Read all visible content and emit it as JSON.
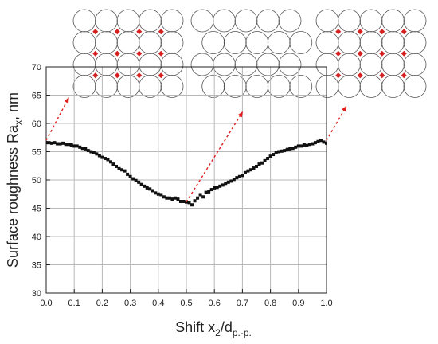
{
  "chart_data": {
    "type": "scatter",
    "xlabel": {
      "main": "Shift x",
      "sub1": "2",
      "sep": "/d",
      "sub2": "p.-p."
    },
    "ylabel": {
      "main": "Surface roughness Ra",
      "sub": "x",
      "unit": ", nm"
    },
    "xlim": [
      0.0,
      1.0
    ],
    "ylim": [
      30,
      70
    ],
    "x_ticks": [
      "0.0",
      "0.1",
      "0.2",
      "0.3",
      "0.4",
      "0.5",
      "0.6",
      "0.7",
      "0.8",
      "0.9",
      "1.0"
    ],
    "y_ticks": [
      "30",
      "35",
      "40",
      "45",
      "50",
      "55",
      "60",
      "65",
      "70"
    ],
    "grid": true,
    "marker": "square",
    "marker_color": "#111111",
    "series": [
      {
        "x": [
          0.0,
          0.01,
          0.02,
          0.03,
          0.04,
          0.05,
          0.06,
          0.07,
          0.08,
          0.09,
          0.1,
          0.11,
          0.12,
          0.13,
          0.14,
          0.15,
          0.16,
          0.17,
          0.18,
          0.19,
          0.2,
          0.21,
          0.22,
          0.23,
          0.24,
          0.25,
          0.26,
          0.27,
          0.28,
          0.29,
          0.3,
          0.31,
          0.32,
          0.33,
          0.34,
          0.35,
          0.36,
          0.37,
          0.38,
          0.39,
          0.4,
          0.41,
          0.42,
          0.43,
          0.44,
          0.45,
          0.46,
          0.47,
          0.48,
          0.49,
          0.5,
          0.51,
          0.52,
          0.53,
          0.54,
          0.55,
          0.56,
          0.57,
          0.58,
          0.59,
          0.6,
          0.61,
          0.62,
          0.63,
          0.64,
          0.65,
          0.66,
          0.67,
          0.68,
          0.69,
          0.7,
          0.71,
          0.72,
          0.73,
          0.74,
          0.75,
          0.76,
          0.77,
          0.78,
          0.79,
          0.8,
          0.81,
          0.82,
          0.83,
          0.84,
          0.85,
          0.86,
          0.87,
          0.88,
          0.89,
          0.9,
          0.91,
          0.92,
          0.93,
          0.94,
          0.95,
          0.96,
          0.97,
          0.98,
          0.99,
          1.0
        ],
        "y": [
          56.6,
          56.6,
          56.5,
          56.6,
          56.4,
          56.4,
          56.5,
          56.3,
          56.3,
          56.2,
          56.0,
          56.0,
          55.8,
          55.6,
          55.5,
          55.2,
          55.0,
          54.8,
          54.6,
          54.3,
          54.0,
          53.8,
          53.6,
          53.2,
          52.8,
          52.4,
          52.0,
          51.8,
          51.6,
          51.0,
          50.6,
          50.2,
          49.9,
          49.6,
          49.2,
          48.9,
          48.6,
          48.4,
          48.1,
          47.7,
          47.5,
          47.4,
          47.0,
          46.8,
          46.8,
          46.6,
          46.8,
          46.6,
          46.2,
          46.2,
          46.1,
          46.0,
          45.6,
          46.3,
          46.8,
          47.4,
          47.0,
          47.8,
          47.9,
          48.3,
          48.6,
          48.7,
          48.9,
          49.1,
          49.4,
          49.6,
          49.8,
          50.1,
          50.4,
          50.6,
          50.8,
          51.3,
          51.6,
          51.8,
          52.1,
          52.4,
          52.8,
          53.0,
          53.4,
          53.8,
          54.2,
          54.5,
          54.8,
          55.0,
          55.1,
          55.2,
          55.4,
          55.5,
          55.6,
          55.8,
          56.0,
          56.0,
          56.2,
          56.1,
          56.3,
          56.4,
          56.6,
          56.8,
          57.0,
          56.7,
          56.5
        ]
      }
    ],
    "annotations": [
      {
        "style": "dashed-arrow",
        "color": "#e02020",
        "from": [
          0.0,
          57.0
        ],
        "to": [
          0.08,
          64.5
        ]
      },
      {
        "style": "dashed-arrow",
        "color": "#e02020",
        "from": [
          0.5,
          46.1
        ],
        "to": [
          0.7,
          62.0
        ]
      },
      {
        "style": "dashed-arrow",
        "color": "#e02020",
        "from": [
          1.0,
          57.0
        ],
        "to": [
          1.07,
          63.0
        ]
      }
    ],
    "insets": [
      {
        "shift": 0.0,
        "rows": 4,
        "cols": 5,
        "offset_rows": false,
        "circle_stroke": "#555555",
        "contact_marker": "#d62020"
      },
      {
        "shift": 0.5,
        "rows": 4,
        "cols": 5,
        "offset_rows": true,
        "circle_stroke": "#555555"
      },
      {
        "shift": 1.0,
        "rows": 4,
        "cols": 5,
        "offset_rows": false,
        "circle_stroke": "#555555",
        "contact_marker": "#d62020"
      }
    ]
  }
}
